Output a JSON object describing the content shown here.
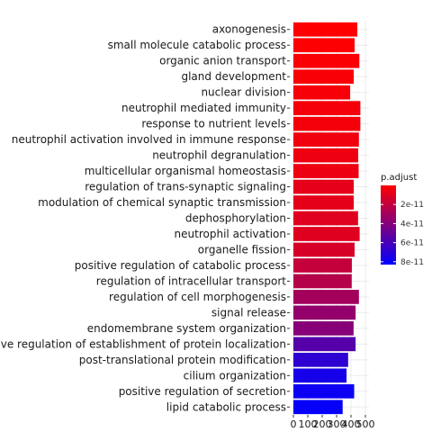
{
  "chart_data": {
    "type": "bar",
    "orientation": "horizontal",
    "categories": [
      "axonogenesis",
      "small molecule catabolic process",
      "organic anion transport",
      "gland development",
      "nuclear division",
      "neutrophil mediated immunity",
      "response to nutrient levels",
      "neutrophil activation involved in immune response",
      "neutrophil degranulation",
      "multicellular organismal homeostasis",
      "regulation of trans-synaptic signaling",
      "modulation of chemical synaptic transmission",
      "dephosphorylation",
      "neutrophil activation",
      "organelle fission",
      "positive regulation of catabolic process",
      "regulation of intracellular transport",
      "regulation of cell morphogenesis",
      "signal release",
      "endomembrane system organization",
      "positive regulation of establishment of protein localization",
      "post-translational protein modification",
      "cilium organization",
      "positive regulation of secretion",
      "lipid catabolic process"
    ],
    "values": [
      444,
      425,
      458,
      419,
      394,
      465,
      465,
      455,
      450,
      453,
      419,
      419,
      449,
      460,
      425,
      406,
      405,
      455,
      432,
      418,
      432,
      380,
      369,
      422,
      342
    ],
    "p_adjust": [
      1e-13,
      8e-13,
      1.5e-12,
      2e-12,
      2.7e-12,
      3.2e-12,
      3.4e-12,
      4.5e-12,
      5.6e-12,
      5.8e-12,
      8.2e-12,
      8.6e-12,
      1e-11,
      1.05e-11,
      1.3e-11,
      1.9e-11,
      2.4e-11,
      3e-11,
      3.5e-11,
      3.9e-11,
      5.5e-11,
      6.8e-11,
      7.6e-11,
      7.9e-11,
      8.1e-11
    ],
    "xlim": [
      0,
      500
    ],
    "x_ticks": [
      "0",
      "100",
      "200",
      "300",
      "400",
      "500"
    ],
    "legend": {
      "title": "p.adjust",
      "ticks": [
        "2e-11",
        "4e-11",
        "6e-11",
        "8e-11"
      ],
      "tick_values": [
        2e-11,
        4e-11,
        6e-11,
        8e-11
      ],
      "range": [
        0,
        8.3e-11
      ],
      "color_low": "#FF0000",
      "color_high": "#0000FF",
      "placement": "right"
    },
    "grid": true
  }
}
